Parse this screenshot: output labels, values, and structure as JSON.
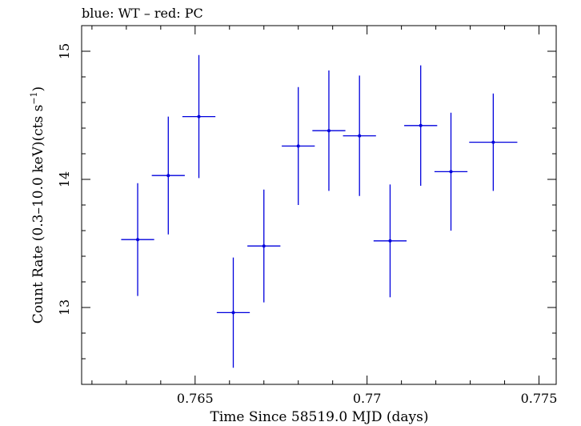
{
  "chart_data": {
    "type": "scatter",
    "title": "blue: WT – red: PC",
    "xlabel": "Time Since 58519.0 MJD (days)",
    "ylabel_main": "Count Rate (0.3–10.0 keV)(cts s",
    "ylabel_sup": "−1",
    "ylabel_end": ")",
    "xlim": [
      0.7617,
      0.7755
    ],
    "ylim": [
      12.4,
      15.2
    ],
    "xticks_major": [
      0.765,
      0.77,
      0.775
    ],
    "xtick_labels": [
      "0.765",
      "0.77",
      "0.775"
    ],
    "xticks_minor_step": 0.001,
    "yticks_major": [
      13,
      14,
      15
    ],
    "ytick_labels": [
      "13",
      "14",
      "15"
    ],
    "yticks_minor_step": 0.2,
    "grid": false,
    "series": [
      {
        "color": "#0000dd",
        "points": [
          {
            "x": 0.76333,
            "xerr": 0.00048,
            "y": 13.53,
            "yerr": 0.44
          },
          {
            "x": 0.76422,
            "xerr": 0.00048,
            "y": 14.03,
            "yerr": 0.46
          },
          {
            "x": 0.76511,
            "xerr": 0.00048,
            "y": 14.49,
            "yerr": 0.48
          },
          {
            "x": 0.76611,
            "xerr": 0.00048,
            "y": 12.96,
            "yerr": 0.43
          },
          {
            "x": 0.767,
            "xerr": 0.00048,
            "y": 13.48,
            "yerr": 0.44
          },
          {
            "x": 0.768,
            "xerr": 0.00048,
            "y": 14.26,
            "yerr": 0.46
          },
          {
            "x": 0.76889,
            "xerr": 0.00048,
            "y": 14.38,
            "yerr": 0.47
          },
          {
            "x": 0.76978,
            "xerr": 0.00048,
            "y": 14.34,
            "yerr": 0.47
          },
          {
            "x": 0.77067,
            "xerr": 0.00048,
            "y": 13.52,
            "yerr": 0.44
          },
          {
            "x": 0.77156,
            "xerr": 0.00048,
            "y": 14.42,
            "yerr": 0.47
          },
          {
            "x": 0.77244,
            "xerr": 0.00048,
            "y": 14.06,
            "yerr": 0.46
          },
          {
            "x": 0.77367,
            "xerr": 0.0007,
            "y": 14.29,
            "yerr": 0.38
          }
        ]
      }
    ]
  }
}
